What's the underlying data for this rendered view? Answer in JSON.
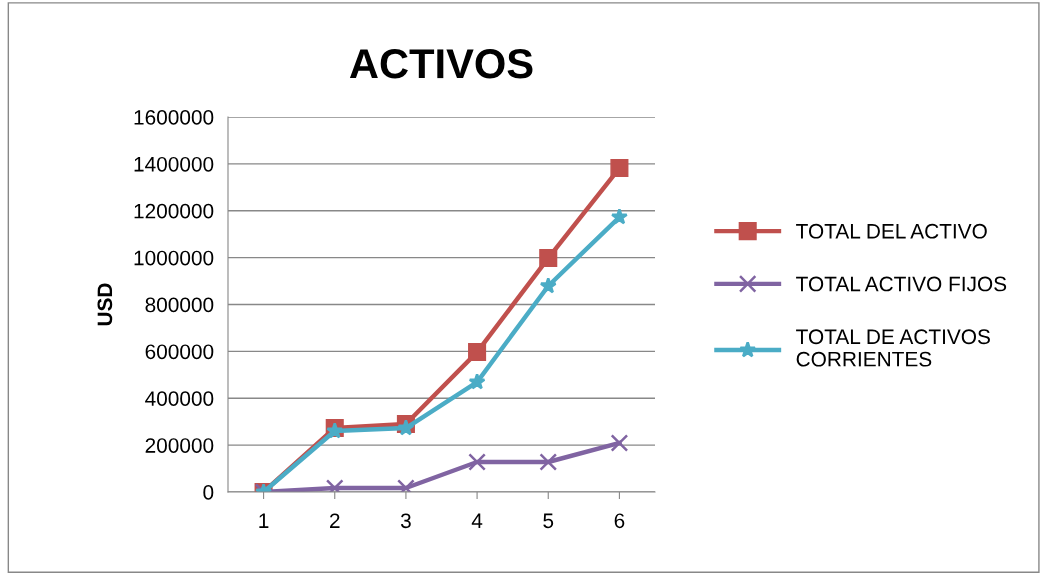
{
  "chart_data": {
    "type": "line",
    "title": "ACTIVOS",
    "ylabel": "USD",
    "categories": [
      "1",
      "2",
      "3",
      "4",
      "5",
      "6"
    ],
    "series": [
      {
        "name": "TOTAL DEL ACTIVO",
        "color": "#c0504d",
        "marker": "square",
        "values": [
          0,
          273000,
          290000,
          597000,
          998000,
          1382000
        ]
      },
      {
        "name": "TOTAL ACTIVO FIJOS",
        "color": "#8064a2",
        "marker": "cross",
        "values": [
          0,
          17000,
          17000,
          128000,
          128000,
          209000
        ]
      },
      {
        "name": "TOTAL DE ACTIVOS CORRIENTES",
        "color": "#4bacc6",
        "marker": "star",
        "values": [
          0,
          260000,
          273000,
          469000,
          879000,
          1173000
        ]
      }
    ],
    "ylim": [
      0,
      1600000
    ],
    "yticks": [
      0,
      200000,
      400000,
      600000,
      800000,
      1000000,
      1200000,
      1400000,
      1600000
    ],
    "grid": "y",
    "legend": "right",
    "line_style": "solid"
  }
}
